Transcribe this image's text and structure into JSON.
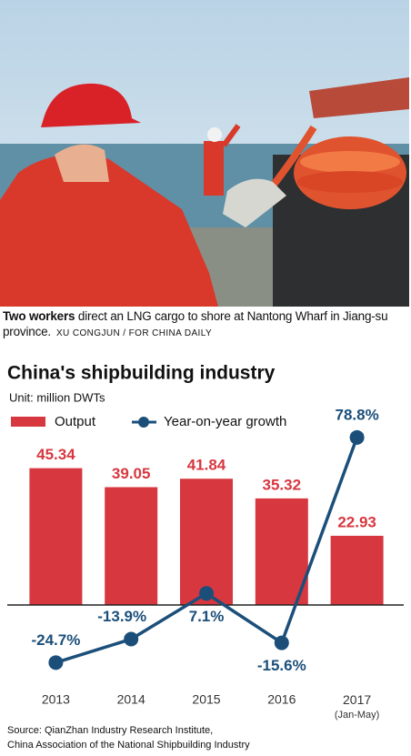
{
  "caption": {
    "lead": "Two workers",
    "text": "direct an LNG cargo to shore at Nantong Wharf in Jiang-su province.",
    "credit": "XU CONGJUN / FOR CHINA DAILY"
  },
  "chart_data": {
    "type": "bar-line",
    "title": "China's shipbuilding industry",
    "subtitle": "Unit: million DWTs",
    "categories": [
      "2013",
      "2014",
      "2015",
      "2016",
      "2017 (Jan-May)"
    ],
    "series": [
      {
        "name": "Output",
        "type": "bar",
        "color": "#d7373f",
        "values": [
          45.34,
          39.05,
          41.84,
          35.32,
          22.93
        ]
      },
      {
        "name": "Year-on-year growth",
        "type": "line",
        "axis": "y2",
        "color": "#1b4f7a",
        "values": [
          -24.7,
          -13.9,
          7.1,
          -15.6,
          78.8
        ],
        "value_labels": [
          "-24.7%",
          "-13.9%",
          "7.1%",
          "-15.6%",
          "78.8%"
        ]
      }
    ],
    "ylim": [
      0,
      60
    ],
    "y2lim": [
      -30,
      85
    ],
    "source": [
      "Source: QianZhan Industry Research Institute,",
      "China Association of the National Shipbuilding Industry"
    ]
  }
}
